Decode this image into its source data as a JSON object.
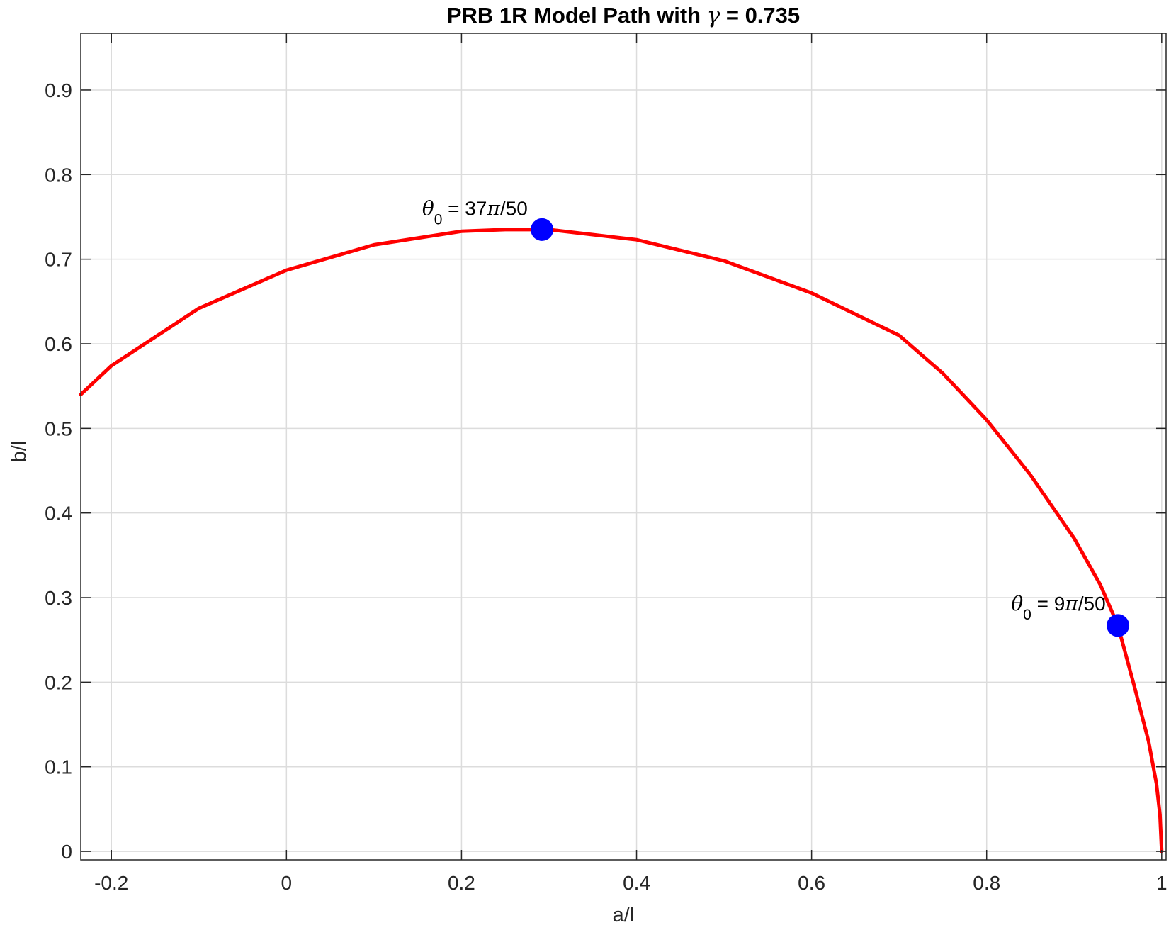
{
  "chart_data": {
    "type": "line",
    "title": {
      "prefix": "PRB 1R Model Path with ",
      "symbol": "γ",
      "suffix": " = 0.735"
    },
    "xlabel": "a/l",
    "ylabel": "b/l",
    "xlim": [
      -0.235,
      1.005
    ],
    "ylim": [
      -0.01,
      0.967
    ],
    "xticks": [
      -0.2,
      0,
      0.2,
      0.4,
      0.6,
      0.8,
      1
    ],
    "xtick_labels": [
      "-0.2",
      "0",
      "0.2",
      "0.4",
      "0.6",
      "0.8",
      "1"
    ],
    "yticks": [
      0,
      0.1,
      0.2,
      0.3,
      0.4,
      0.5,
      0.6,
      0.7,
      0.8,
      0.9
    ],
    "ytick_labels": [
      "0",
      "0.1",
      "0.2",
      "0.3",
      "0.4",
      "0.5",
      "0.6",
      "0.7",
      "0.8",
      "0.9"
    ],
    "grid": true,
    "box": true,
    "series": [
      {
        "kind": "line",
        "color": "#ff0000",
        "points": [
          [
            1.0,
            0.0
          ],
          [
            0.998,
            0.043
          ],
          [
            0.994,
            0.08
          ],
          [
            0.985,
            0.13
          ],
          [
            0.97,
            0.19
          ],
          [
            0.95,
            0.267
          ],
          [
            0.93,
            0.315
          ],
          [
            0.9,
            0.37
          ],
          [
            0.85,
            0.445
          ],
          [
            0.8,
            0.51
          ],
          [
            0.75,
            0.565
          ],
          [
            0.7,
            0.61
          ],
          [
            0.6,
            0.66
          ],
          [
            0.5,
            0.698
          ],
          [
            0.4,
            0.723
          ],
          [
            0.3,
            0.735
          ],
          [
            0.25,
            0.735
          ],
          [
            0.2,
            0.733
          ],
          [
            0.1,
            0.717
          ],
          [
            0.0,
            0.687
          ],
          [
            -0.1,
            0.642
          ],
          [
            -0.2,
            0.574
          ],
          [
            -0.235,
            0.54
          ]
        ]
      },
      {
        "kind": "markers",
        "color": "#0000ff",
        "points": [
          [
            0.292,
            0.735
          ],
          [
            0.95,
            0.267
          ]
        ]
      }
    ],
    "annotations": [
      {
        "x": 0.155,
        "y": 0.752,
        "symbol": "θ",
        "subscript": "0",
        "text": " = 37",
        "pi": "π",
        "tail": "/50"
      },
      {
        "x": 0.828,
        "y": 0.285,
        "symbol": "θ",
        "subscript": "0",
        "text": " = 9",
        "pi": "π",
        "tail": "/50"
      }
    ]
  }
}
